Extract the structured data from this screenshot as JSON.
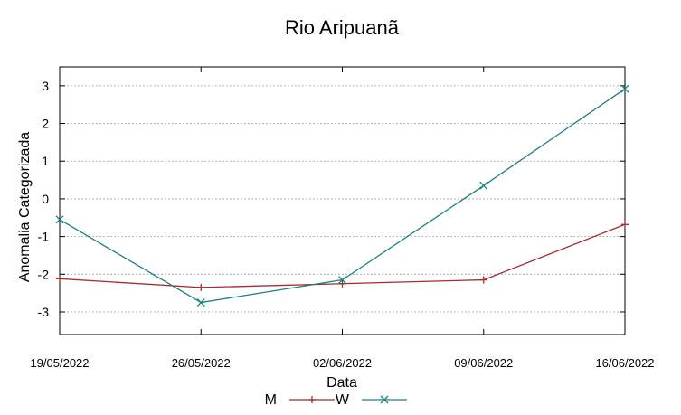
{
  "chart_data": {
    "type": "line",
    "title": "Rio Aripuanã",
    "xlabel": "Data",
    "ylabel": "Anomalia Categorizada",
    "categories": [
      "19/05/2022",
      "26/05/2022",
      "02/06/2022",
      "09/06/2022",
      "16/06/2022"
    ],
    "ylim": [
      -3.6,
      3.5
    ],
    "yticks": [
      -3,
      -2,
      -1,
      0,
      1,
      2,
      3
    ],
    "grid": true,
    "legend_position": "bottom",
    "series": [
      {
        "name": "M",
        "color": "#a52a2a",
        "marker": "plus",
        "values": [
          -2.12,
          -2.35,
          -2.25,
          -2.15,
          -0.68
        ]
      },
      {
        "name": "W",
        "color": "#1a8080",
        "marker": "cross",
        "values": [
          -0.55,
          -2.75,
          -2.15,
          0.35,
          2.92
        ]
      }
    ]
  }
}
